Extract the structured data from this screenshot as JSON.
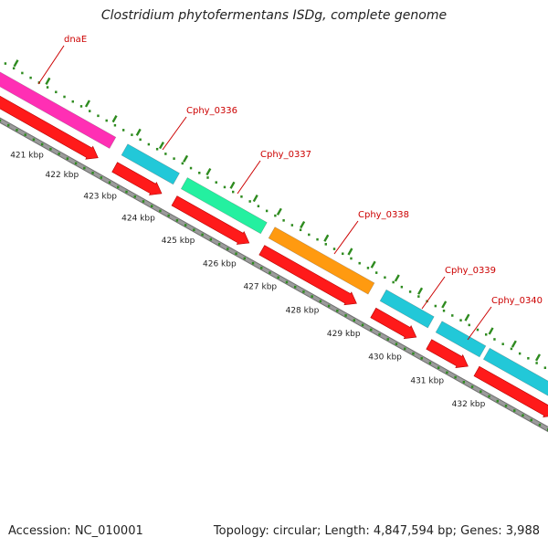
{
  "title": "Clostridium phytofermentans ISDg, complete genome",
  "footer": {
    "accession": "Accession: NC_010001",
    "meta": "Topology: circular; Length: 4,847,594 bp; Genes: 3,988"
  },
  "colors": {
    "cds": "#ff1a1a",
    "backbone": "#9b9b9b",
    "label": "#cc0000",
    "ticks": "#2e8b1f",
    "text": "#222222"
  },
  "scale_labels": [
    "421 kbp",
    "422 kbp",
    "423 kbp",
    "424 kbp",
    "425 kbp",
    "426 kbp",
    "427 kbp",
    "428 kbp",
    "429 kbp",
    "430 kbp",
    "431 kbp",
    "432 kbp"
  ],
  "genes": [
    {
      "name": "dnaE",
      "color": "#ff2fb4"
    },
    {
      "name": "Cphy_0336",
      "color": "#22c8d8"
    },
    {
      "name": "Cphy_0337",
      "color": "#24f0a0"
    },
    {
      "name": "Cphy_0338",
      "color": "#ff9a10"
    },
    {
      "name": "Cphy_0339",
      "color": "#22c8d8"
    },
    {
      "name": "Cphy_0340",
      "color": "#22c8d8"
    }
  ]
}
